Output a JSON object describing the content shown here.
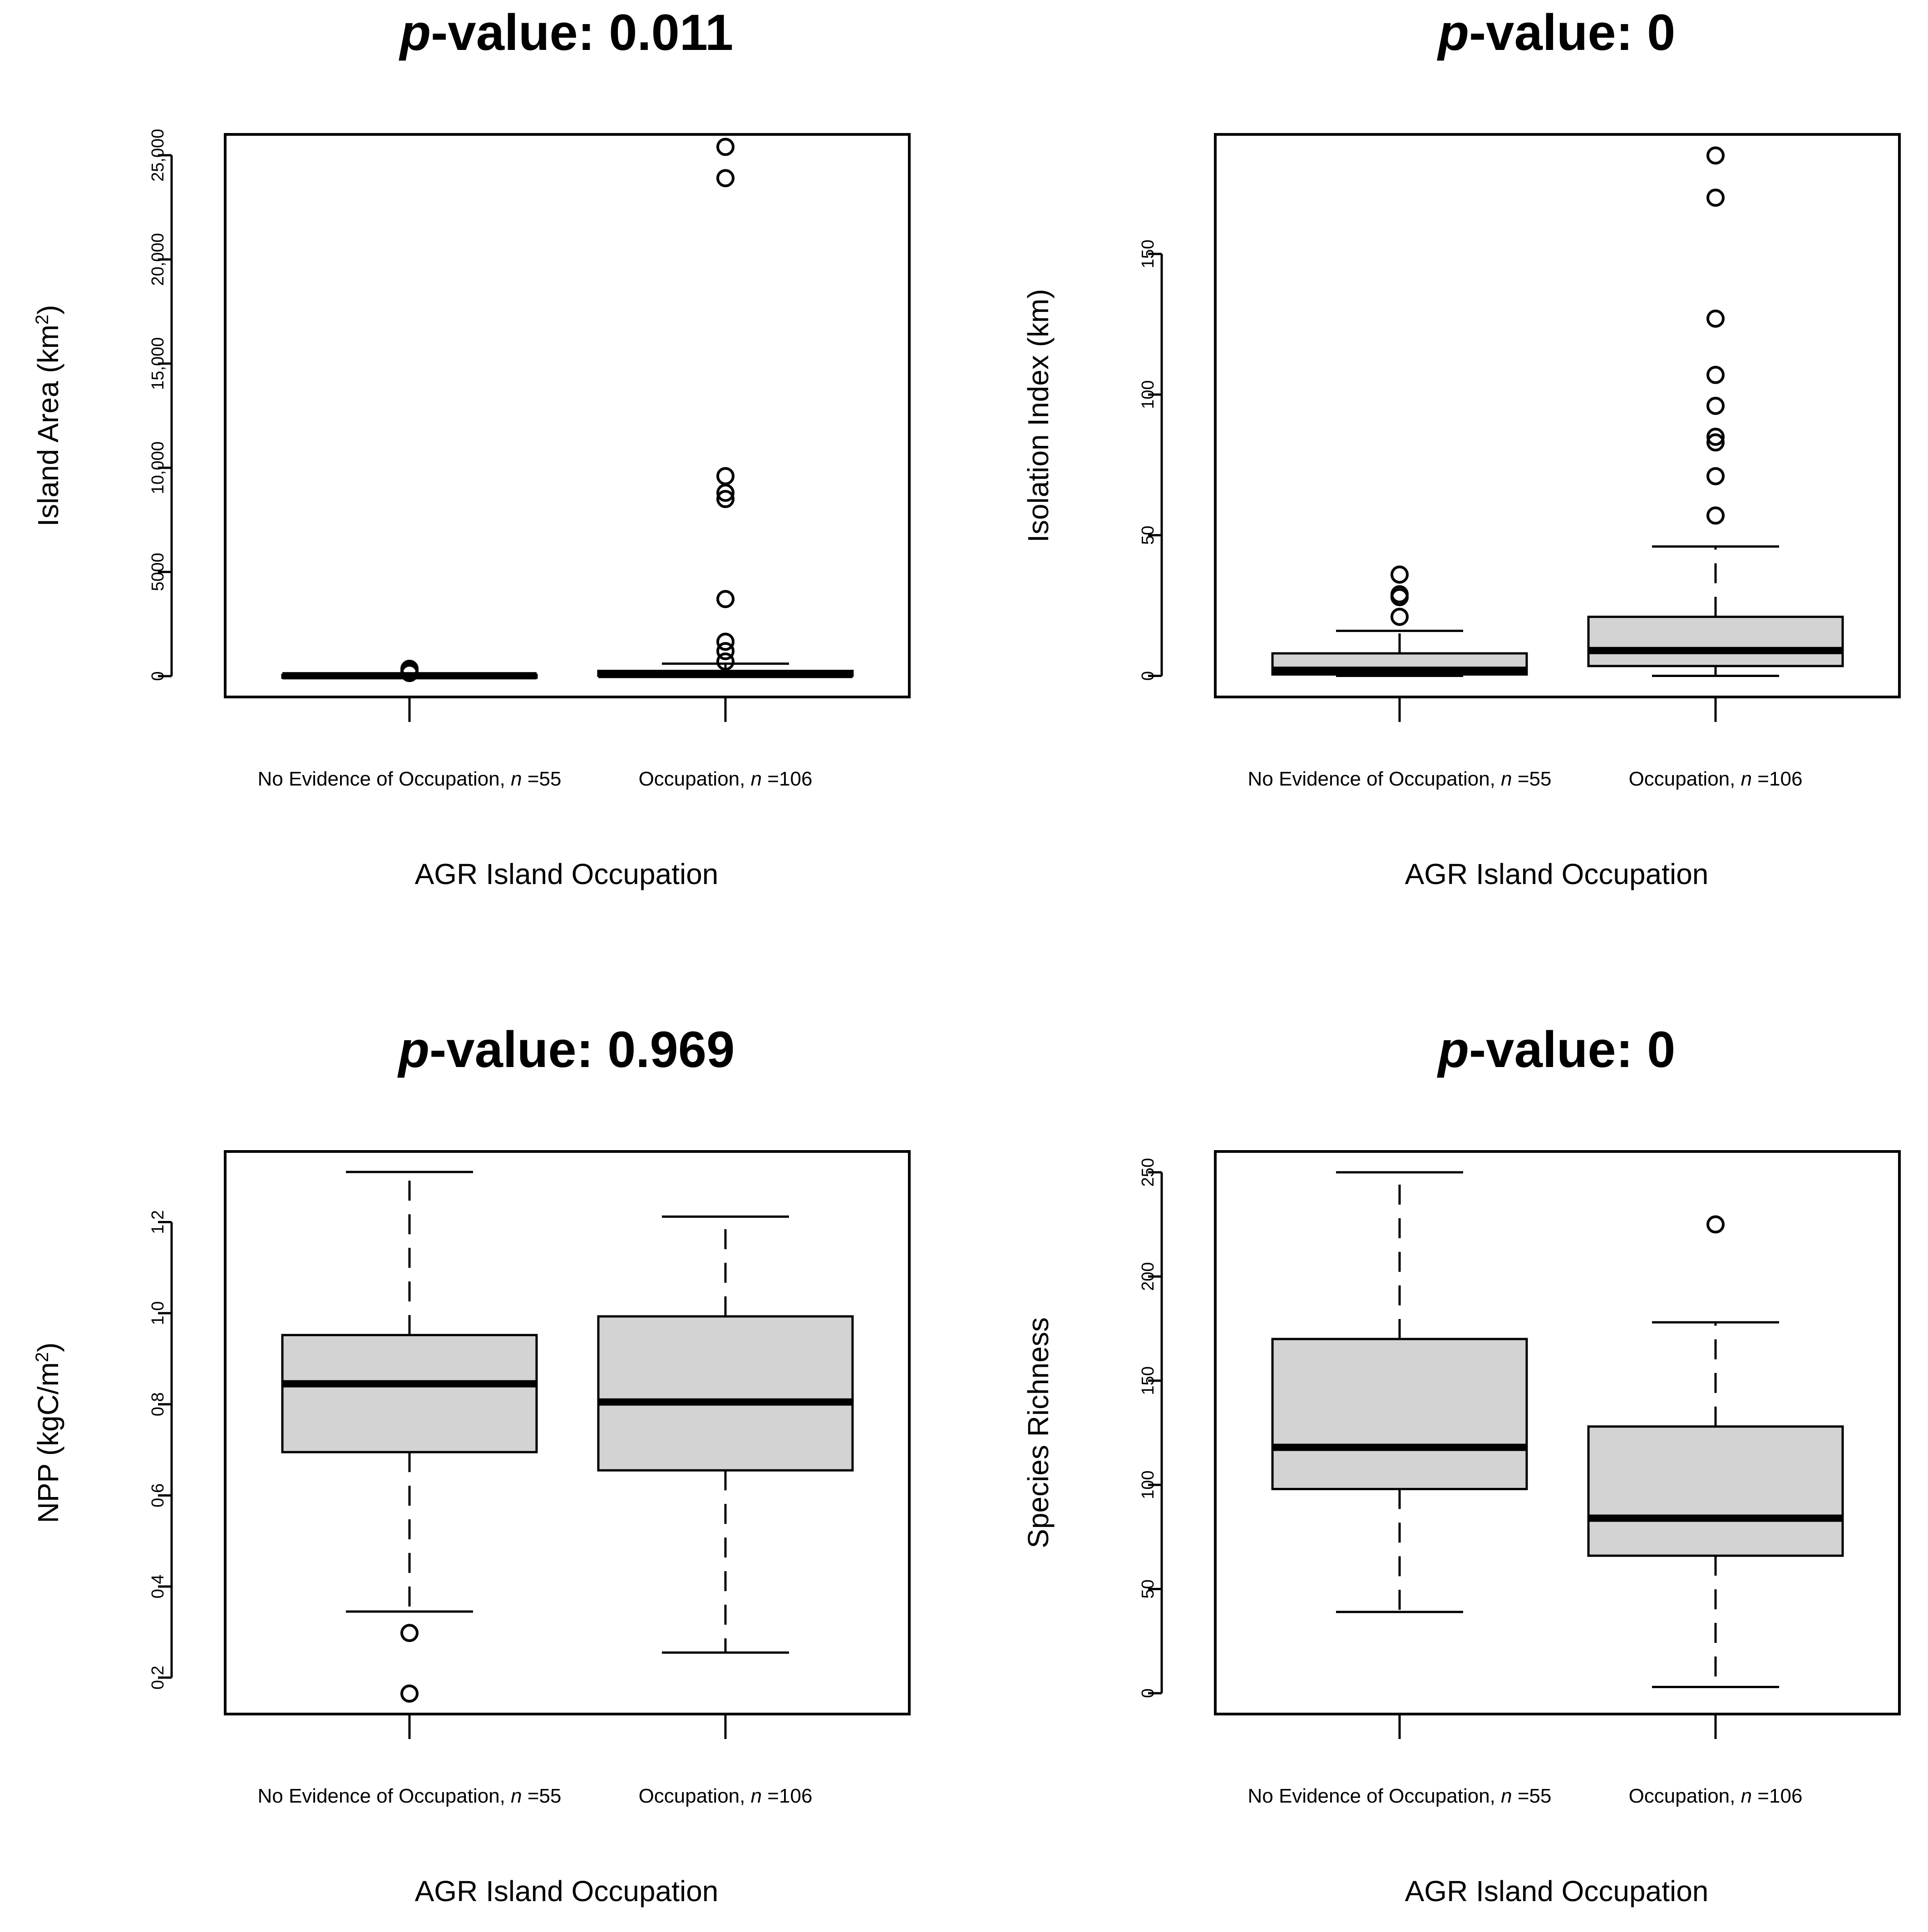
{
  "chart_data": [
    {
      "type": "box",
      "title": "p-value: 0.011",
      "title_p": "p",
      "title_rest": "-value: 0.011",
      "xlabel": "AGR Island Occupation",
      "ylabel": "Island Area (km²)",
      "ylabel_main": "Island Area (km",
      "ylabel_sup": "2",
      "ylabel_end": ")",
      "ylim": [
        -1000,
        26000
      ],
      "y_ticks": [
        0,
        5000,
        10000,
        15000,
        20000,
        25000
      ],
      "y_tick_labels": [
        "0",
        "5000",
        "10,000",
        "15,000",
        "20,000",
        "25,000"
      ],
      "categories": [
        {
          "label": "No Evidence of Occupation, ",
          "n_label": "n",
          "n_value": "=55"
        },
        {
          "label": "Occupation, ",
          "n_label": "n",
          "n_value": "=106"
        }
      ],
      "boxes": [
        {
          "whisker_low": 0,
          "q1": 5,
          "median": 20,
          "q3": 60,
          "whisker_high": 110,
          "outliers": [
            150,
            250,
            350
          ]
        },
        {
          "whisker_low": 0,
          "q1": 20,
          "median": 80,
          "q3": 250,
          "whisker_high": 600,
          "outliers": [
            700,
            1200,
            1650,
            3700,
            8500,
            8800,
            9600,
            23900,
            25400
          ]
        }
      ]
    },
    {
      "type": "box",
      "title": "p-value: 0",
      "title_p": "p",
      "title_rest": "-value: 0",
      "xlabel": "AGR Island Occupation",
      "ylabel": "Isolation Index (km)",
      "ylabel_main": "Isolation Index (km)",
      "ylabel_sup": "",
      "ylabel_end": "",
      "ylim": [
        -7.5,
        192.5
      ],
      "y_ticks": [
        0,
        50,
        100,
        150
      ],
      "y_tick_labels": [
        "0",
        "50",
        "100",
        "150"
      ],
      "categories": [
        {
          "label": "No Evidence of Occupation, ",
          "n_label": "n",
          "n_value": "=55"
        },
        {
          "label": "Occupation, ",
          "n_label": "n",
          "n_value": "=106"
        }
      ],
      "boxes": [
        {
          "whisker_low": 0,
          "q1": 0.5,
          "median": 2,
          "q3": 8,
          "whisker_high": 16,
          "outliers": [
            21,
            28,
            29,
            36
          ]
        },
        {
          "whisker_low": 0,
          "q1": 3.5,
          "median": 9,
          "q3": 21,
          "whisker_high": 46,
          "outliers": [
            57,
            71,
            83,
            85,
            96,
            107,
            127,
            170,
            185
          ]
        }
      ]
    },
    {
      "type": "box",
      "title": "p-value: 0.969",
      "title_p": "p",
      "title_rest": "-value: 0.969",
      "xlabel": "AGR Island Occupation",
      "ylabel": "NPP (kgC/m²)",
      "ylabel_main": "NPP (kgC/m",
      "ylabel_sup": "2",
      "ylabel_end": ")",
      "ylim": [
        0.12,
        1.355
      ],
      "y_ticks": [
        0.2,
        0.4,
        0.6,
        0.8,
        1.0,
        1.2
      ],
      "y_tick_labels": [
        "0.2",
        "0.4",
        "0.6",
        "0.8",
        "1.0",
        "1.2"
      ],
      "categories": [
        {
          "label": "No Evidence of Occupation, ",
          "n_label": "n",
          "n_value": "=55"
        },
        {
          "label": "Occupation, ",
          "n_label": "n",
          "n_value": "=106"
        }
      ],
      "boxes": [
        {
          "whisker_low": 0.345,
          "q1": 0.695,
          "median": 0.845,
          "q3": 0.952,
          "whisker_high": 1.31,
          "outliers": [
            0.298,
            0.165
          ]
        },
        {
          "whisker_low": 0.255,
          "q1": 0.655,
          "median": 0.805,
          "q3": 0.993,
          "whisker_high": 1.212,
          "outliers": []
        }
      ]
    },
    {
      "type": "box",
      "title": "p-value: 0",
      "title_p": "p",
      "title_rest": "-value: 0",
      "xlabel": "AGR Island Occupation",
      "ylabel": "Species Richness",
      "ylabel_main": "Species Richness",
      "ylabel_sup": "",
      "ylabel_end": "",
      "ylim": [
        -10,
        260
      ],
      "y_ticks": [
        0,
        50,
        100,
        150,
        200,
        250
      ],
      "y_tick_labels": [
        "0",
        "50",
        "100",
        "150",
        "200",
        "250"
      ],
      "categories": [
        {
          "label": "No Evidence of Occupation, ",
          "n_label": "n",
          "n_value": "=55"
        },
        {
          "label": "Occupation, ",
          "n_label": "n",
          "n_value": "=106"
        }
      ],
      "boxes": [
        {
          "whisker_low": 39,
          "q1": 98,
          "median": 118,
          "q3": 170,
          "whisker_high": 250,
          "outliers": []
        },
        {
          "whisker_low": 3,
          "q1": 66,
          "median": 84,
          "q3": 128,
          "whisker_high": 178,
          "outliers": [
            225
          ]
        }
      ]
    }
  ]
}
